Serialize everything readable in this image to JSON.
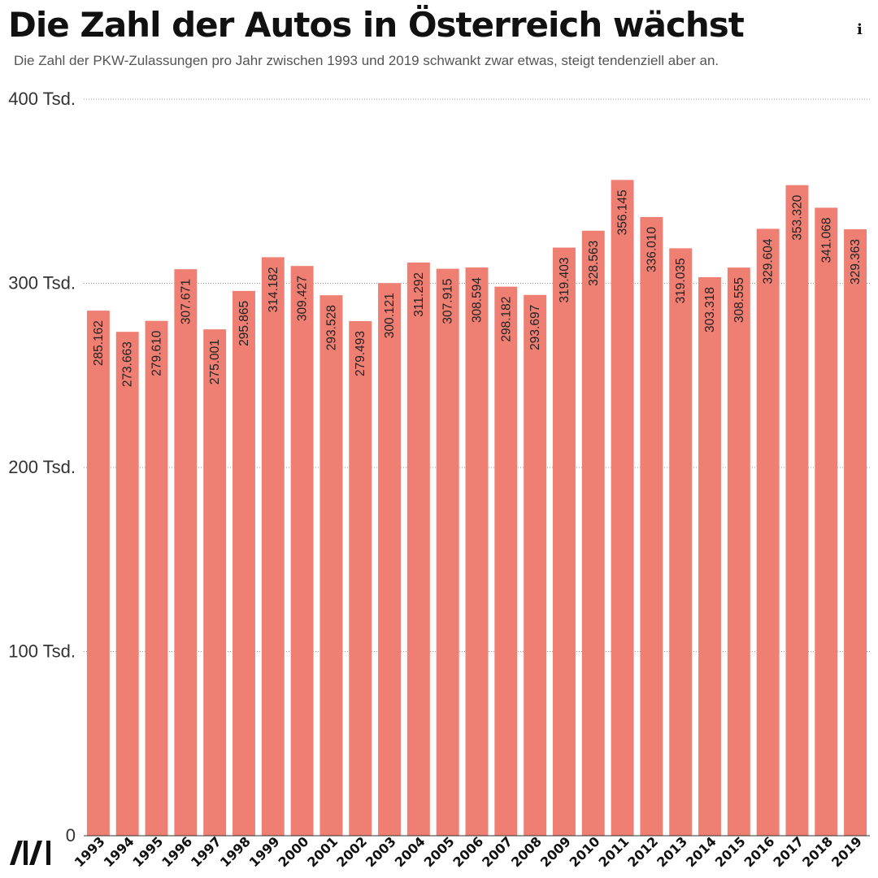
{
  "header": {
    "title": "Die Zahl der Autos in Österreich wächst",
    "subtitle": "Die Zahl der PKW-Zulassungen pro Jahr zwischen 1993 und 2019 schwankt zwar etwas, steigt tendenziell aber an.",
    "info_symbol": "i"
  },
  "icons": {
    "info": "info-icon",
    "logo": "newsroom-logo"
  },
  "chart_data": {
    "type": "bar",
    "title": "Die Zahl der Autos in Österreich wächst",
    "subtitle": "Die Zahl der PKW-Zulassungen pro Jahr zwischen 1993 und 2019 schwankt zwar etwas, steigt tendenziell aber an.",
    "xlabel": "",
    "ylabel": "",
    "ylim": [
      0,
      400000
    ],
    "yticks": [
      0,
      100000,
      200000,
      300000,
      400000
    ],
    "ytick_labels": [
      "0",
      "100 Tsd.",
      "200 Tsd.",
      "300 Tsd.",
      "400 Tsd."
    ],
    "grid": true,
    "bar_color": "#ef7f72",
    "categories": [
      "1993",
      "1994",
      "1995",
      "1996",
      "1997",
      "1998",
      "1999",
      "2000",
      "2001",
      "2002",
      "2003",
      "2004",
      "2005",
      "2006",
      "2007",
      "2008",
      "2009",
      "2010",
      "2011",
      "2012",
      "2013",
      "2014",
      "2015",
      "2016",
      "2017",
      "2018",
      "2019"
    ],
    "values": [
      285162,
      273663,
      279610,
      307671,
      275001,
      295865,
      314182,
      309427,
      293528,
      279493,
      300121,
      311292,
      307915,
      308594,
      298182,
      293697,
      319403,
      328563,
      356145,
      336010,
      319035,
      303318,
      308555,
      329604,
      353320,
      341068,
      329363
    ],
    "value_labels": [
      "285.162",
      "273.663",
      "279.610",
      "307.671",
      "275.001",
      "295.865",
      "314.182",
      "309.427",
      "293.528",
      "279.493",
      "300.121",
      "311.292",
      "307.915",
      "308.594",
      "298.182",
      "293.697",
      "319.403",
      "328.563",
      "356.145",
      "336.010",
      "319.035",
      "303.318",
      "308.555",
      "329.604",
      "353.320",
      "341.068",
      "329.363"
    ]
  }
}
